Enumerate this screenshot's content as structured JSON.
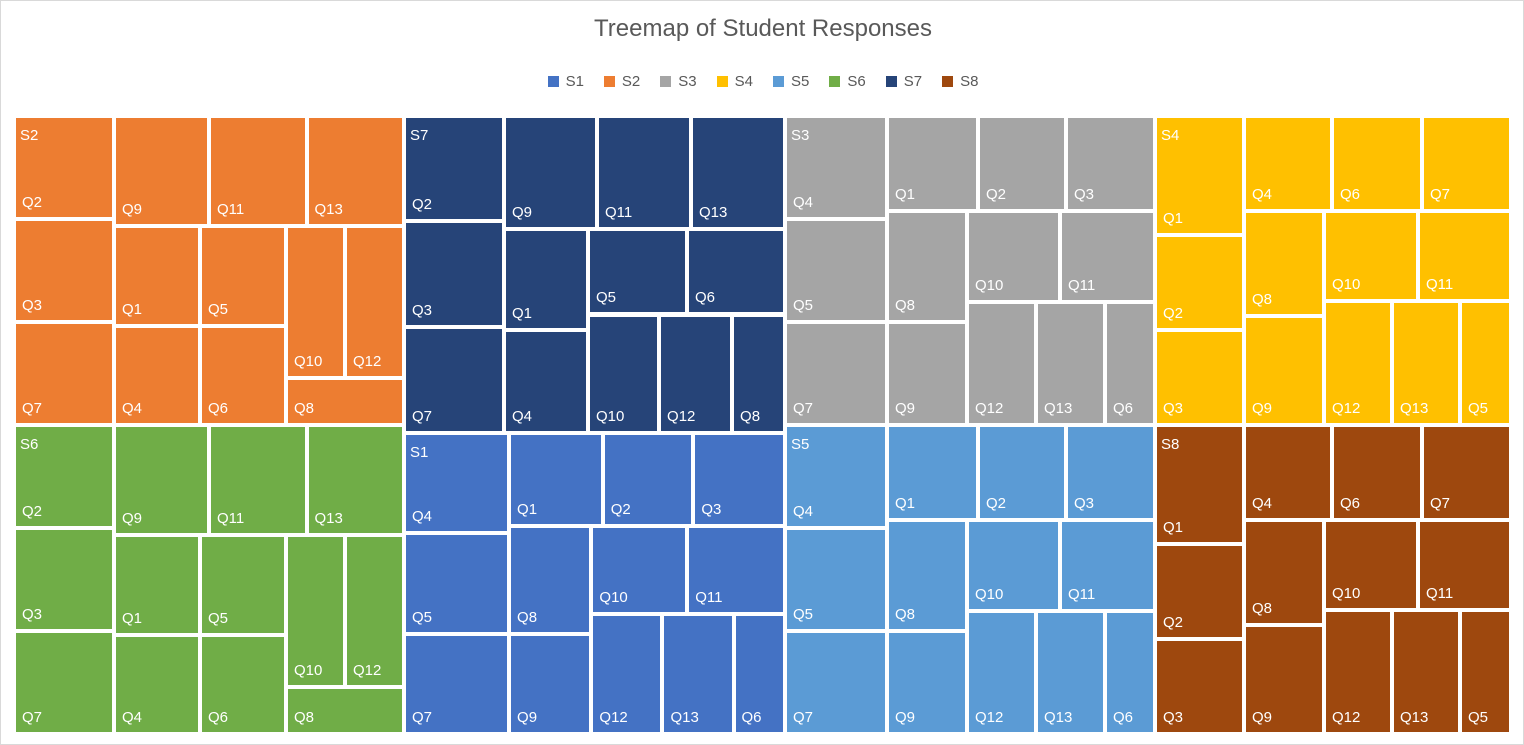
{
  "chart_data": {
    "type": "treemap",
    "title": "Treemap of Student Responses",
    "legend": [
      "S1",
      "S2",
      "S3",
      "S4",
      "S5",
      "S6",
      "S7",
      "S8"
    ],
    "legend_placement": "top",
    "colors": {
      "S1": "#4472c4",
      "S2": "#ed7d31",
      "S3": "#a5a5a5",
      "S4": "#ffc000",
      "S5": "#5b9bd5",
      "S6": "#70ad47",
      "S7": "#264478",
      "S8": "#9e480e"
    },
    "groups": [
      {
        "name": "S2",
        "items": [
          {
            "label": "Q2",
            "value": 13
          },
          {
            "label": "Q9",
            "value": 12
          },
          {
            "label": "Q11",
            "value": 12
          },
          {
            "label": "Q13",
            "value": 12
          },
          {
            "label": "Q3",
            "value": 13
          },
          {
            "label": "Q1",
            "value": 10
          },
          {
            "label": "Q5",
            "value": 10
          },
          {
            "label": "Q10",
            "value": 8
          },
          {
            "label": "Q12",
            "value": 8
          },
          {
            "label": "Q7",
            "value": 13
          },
          {
            "label": "Q4",
            "value": 10
          },
          {
            "label": "Q6",
            "value": 10
          },
          {
            "label": "Q8",
            "value": 6
          }
        ]
      },
      {
        "name": "S7",
        "items": [
          {
            "label": "Q2",
            "value": 13
          },
          {
            "label": "Q9",
            "value": 12
          },
          {
            "label": "Q11",
            "value": 12
          },
          {
            "label": "Q13",
            "value": 12
          },
          {
            "label": "Q3",
            "value": 13
          },
          {
            "label": "Q1",
            "value": 10
          },
          {
            "label": "Q5",
            "value": 10
          },
          {
            "label": "Q6",
            "value": 10
          },
          {
            "label": "Q7",
            "value": 13
          },
          {
            "label": "Q4",
            "value": 10
          },
          {
            "label": "Q10",
            "value": 9
          },
          {
            "label": "Q12",
            "value": 9
          },
          {
            "label": "Q8",
            "value": 6
          }
        ]
      },
      {
        "name": "S3",
        "items": [
          {
            "label": "Q4",
            "value": 12
          },
          {
            "label": "Q1",
            "value": 10
          },
          {
            "label": "Q2",
            "value": 10
          },
          {
            "label": "Q3",
            "value": 10
          },
          {
            "label": "Q5",
            "value": 12
          },
          {
            "label": "Q8",
            "value": 10
          },
          {
            "label": "Q10",
            "value": 10
          },
          {
            "label": "Q11",
            "value": 10
          },
          {
            "label": "Q7",
            "value": 12
          },
          {
            "label": "Q9",
            "value": 10
          },
          {
            "label": "Q12",
            "value": 8
          },
          {
            "label": "Q13",
            "value": 8
          },
          {
            "label": "Q6",
            "value": 6
          }
        ]
      },
      {
        "name": "S4",
        "items": [
          {
            "label": "Q1",
            "value": 10
          },
          {
            "label": "Q4",
            "value": 9
          },
          {
            "label": "Q6",
            "value": 9
          },
          {
            "label": "Q7",
            "value": 9
          },
          {
            "label": "Q2",
            "value": 10
          },
          {
            "label": "Q8",
            "value": 9
          },
          {
            "label": "Q10",
            "value": 9
          },
          {
            "label": "Q11",
            "value": 9
          },
          {
            "label": "Q3",
            "value": 10
          },
          {
            "label": "Q9",
            "value": 9
          },
          {
            "label": "Q12",
            "value": 8
          },
          {
            "label": "Q13",
            "value": 8
          },
          {
            "label": "Q5",
            "value": 6
          }
        ]
      },
      {
        "name": "S6",
        "items": [
          {
            "label": "Q2",
            "value": 13
          },
          {
            "label": "Q9",
            "value": 12
          },
          {
            "label": "Q11",
            "value": 12
          },
          {
            "label": "Q13",
            "value": 12
          },
          {
            "label": "Q3",
            "value": 13
          },
          {
            "label": "Q1",
            "value": 10
          },
          {
            "label": "Q5",
            "value": 10
          },
          {
            "label": "Q10",
            "value": 8
          },
          {
            "label": "Q12",
            "value": 8
          },
          {
            "label": "Q7",
            "value": 13
          },
          {
            "label": "Q4",
            "value": 10
          },
          {
            "label": "Q6",
            "value": 10
          },
          {
            "label": "Q8",
            "value": 6
          }
        ]
      },
      {
        "name": "S1",
        "items": [
          {
            "label": "Q4",
            "value": 11
          },
          {
            "label": "Q1",
            "value": 9
          },
          {
            "label": "Q2",
            "value": 9
          },
          {
            "label": "Q3",
            "value": 9
          },
          {
            "label": "Q5",
            "value": 11
          },
          {
            "label": "Q8",
            "value": 9
          },
          {
            "label": "Q10",
            "value": 9
          },
          {
            "label": "Q11",
            "value": 9
          },
          {
            "label": "Q7",
            "value": 11
          },
          {
            "label": "Q9",
            "value": 9
          },
          {
            "label": "Q12",
            "value": 8
          },
          {
            "label": "Q13",
            "value": 8
          },
          {
            "label": "Q6",
            "value": 6
          }
        ]
      },
      {
        "name": "S5",
        "items": [
          {
            "label": "Q4",
            "value": 11
          },
          {
            "label": "Q1",
            "value": 9
          },
          {
            "label": "Q2",
            "value": 9
          },
          {
            "label": "Q3",
            "value": 9
          },
          {
            "label": "Q5",
            "value": 11
          },
          {
            "label": "Q8",
            "value": 9
          },
          {
            "label": "Q10",
            "value": 9
          },
          {
            "label": "Q11",
            "value": 9
          },
          {
            "label": "Q7",
            "value": 11
          },
          {
            "label": "Q9",
            "value": 9
          },
          {
            "label": "Q12",
            "value": 8
          },
          {
            "label": "Q13",
            "value": 8
          },
          {
            "label": "Q6",
            "value": 6
          }
        ]
      },
      {
        "name": "S8",
        "items": [
          {
            "label": "Q1",
            "value": 10
          },
          {
            "label": "Q4",
            "value": 9
          },
          {
            "label": "Q6",
            "value": 9
          },
          {
            "label": "Q7",
            "value": 9
          },
          {
            "label": "Q2",
            "value": 10
          },
          {
            "label": "Q8",
            "value": 9
          },
          {
            "label": "Q10",
            "value": 9
          },
          {
            "label": "Q11",
            "value": 9
          },
          {
            "label": "Q3",
            "value": 10
          },
          {
            "label": "Q9",
            "value": 9
          },
          {
            "label": "Q12",
            "value": 8
          },
          {
            "label": "Q13",
            "value": 8
          },
          {
            "label": "Q5",
            "value": 6
          }
        ]
      }
    ]
  }
}
